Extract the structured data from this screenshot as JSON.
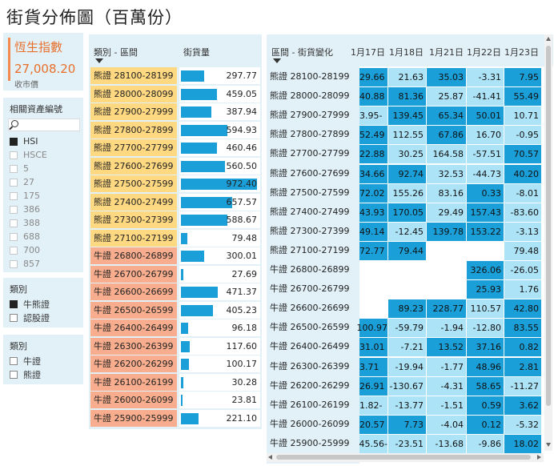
{
  "title": "街貨分佈圖（百萬份）",
  "kpi": {
    "title": "恆生指數",
    "value": "27,008.20",
    "subtitle": "收市價"
  },
  "underlying_filter": {
    "title": "相關資產編號",
    "items": [
      {
        "label": "HSI",
        "checked": true
      },
      {
        "label": "HSCE",
        "checked": false
      },
      {
        "label": "5",
        "checked": false
      },
      {
        "label": "27",
        "checked": false
      },
      {
        "label": "175",
        "checked": false
      },
      {
        "label": "386",
        "checked": false
      },
      {
        "label": "388",
        "checked": false
      },
      {
        "label": "688",
        "checked": false
      },
      {
        "label": "700",
        "checked": false
      },
      {
        "label": "857",
        "checked": false
      }
    ]
  },
  "type_filter_1": {
    "title": "類別",
    "items": [
      {
        "label": "牛熊證",
        "checked": true
      },
      {
        "label": "認股證",
        "checked": false
      }
    ]
  },
  "type_filter_2": {
    "title": "類別",
    "items": [
      {
        "label": "牛證",
        "checked": false
      },
      {
        "label": "熊證",
        "checked": false
      }
    ]
  },
  "table1": {
    "header_category": "類別 - 區間",
    "header_value": "街貨量",
    "max_value": 972.4,
    "rows": [
      {
        "label": "熊證 28100-28199",
        "type": "bear",
        "value": 297.77,
        "display": "297.77"
      },
      {
        "label": "熊證 28000-28099",
        "type": "bear",
        "value": 459.05,
        "display": "459.05"
      },
      {
        "label": "熊證 27900-27999",
        "type": "bear",
        "value": 387.94,
        "display": "387.94"
      },
      {
        "label": "熊證 27800-27899",
        "type": "bear",
        "value": 594.93,
        "display": "594.93"
      },
      {
        "label": "熊證 27700-27799",
        "type": "bear",
        "value": 460.46,
        "display": "460.46"
      },
      {
        "label": "熊證 27600-27699",
        "type": "bear",
        "value": 560.5,
        "display": "560.50"
      },
      {
        "label": "熊證 27500-27599",
        "type": "bear",
        "value": 972.4,
        "display": "972.40"
      },
      {
        "label": "熊證 27400-27499",
        "type": "bear",
        "value": 657.57,
        "display": "657.57"
      },
      {
        "label": "熊證 27300-27399",
        "type": "bear",
        "value": 588.67,
        "display": "588.67"
      },
      {
        "label": "熊證 27100-27199",
        "type": "bear",
        "value": 79.48,
        "display": "79.48"
      },
      {
        "label": "牛證 26800-26899",
        "type": "bull",
        "value": 300.01,
        "display": "300.01"
      },
      {
        "label": "牛證 26700-26799",
        "type": "bull",
        "value": 27.69,
        "display": "27.69"
      },
      {
        "label": "牛證 26600-26699",
        "type": "bull",
        "value": 471.37,
        "display": "471.37"
      },
      {
        "label": "牛證 26500-26599",
        "type": "bull",
        "value": 405.23,
        "display": "405.23"
      },
      {
        "label": "牛證 26400-26499",
        "type": "bull",
        "value": 96.18,
        "display": "96.18"
      },
      {
        "label": "牛證 26300-26399",
        "type": "bull",
        "value": 117.6,
        "display": "117.60"
      },
      {
        "label": "牛證 26200-26299",
        "type": "bull",
        "value": 100.17,
        "display": "100.17"
      },
      {
        "label": "牛證 26100-26199",
        "type": "bull",
        "value": 30.28,
        "display": "30.28"
      },
      {
        "label": "牛證 26000-26099",
        "type": "bull",
        "value": 23.81,
        "display": "23.81"
      },
      {
        "label": "牛證 25900-25999",
        "type": "bull",
        "value": 221.1,
        "display": "221.10"
      }
    ]
  },
  "table2": {
    "header_label": "區間 - 街貨變化",
    "date_headers": [
      "1月17日",
      "1月18日",
      "1月21日",
      "1月22日",
      "1月23日"
    ],
    "rows": [
      {
        "label": "熊證 28100-28199",
        "cells": [
          "29.66",
          "21.63",
          "35.03",
          "-3.31",
          "7.95"
        ],
        "shade": [
          "hi",
          "lo",
          "hi",
          "lo",
          "hi"
        ]
      },
      {
        "label": "熊證 28000-28099",
        "cells": [
          "40.88",
          "81.36",
          "25.87",
          "-41.41",
          "55.49"
        ],
        "shade": [
          "hi",
          "hi",
          "lo",
          "lo",
          "hi"
        ]
      },
      {
        "label": "熊證 27900-27999",
        "cells": [
          "-3.95",
          "139.45",
          "65.34",
          "50.01",
          "10.71"
        ],
        "shade": [
          "lo",
          "hi",
          "hi",
          "hi",
          "lo"
        ]
      },
      {
        "label": "熊證 27800-27899",
        "cells": [
          "52.49",
          "112.55",
          "67.86",
          "16.70",
          "-0.95"
        ],
        "shade": [
          "hi",
          "lo",
          "hi",
          "lo",
          "lo"
        ]
      },
      {
        "label": "熊證 27700-27799",
        "cells": [
          "22.88",
          "30.25",
          "164.58",
          "-57.51",
          "70.57"
        ],
        "shade": [
          "hi",
          "lo",
          "lo",
          "lo",
          "hi"
        ]
      },
      {
        "label": "熊證 27600-27699",
        "cells": [
          "34.66",
          "92.74",
          "32.53",
          "-44.73",
          "40.20"
        ],
        "shade": [
          "hi",
          "hi",
          "lo",
          "lo",
          "hi"
        ]
      },
      {
        "label": "熊證 27500-27599",
        "cells": [
          "72.02",
          "155.26",
          "83.16",
          "0.33",
          "-8.01"
        ],
        "shade": [
          "hi",
          "lo",
          "lo",
          "hi",
          "lo"
        ]
      },
      {
        "label": "熊證 27400-27499",
        "cells": [
          "43.93",
          "170.05",
          "29.49",
          "157.43",
          "-83.60"
        ],
        "shade": [
          "hi",
          "hi",
          "lo",
          "hi",
          "lo"
        ]
      },
      {
        "label": "熊證 27300-27399",
        "cells": [
          "49.14",
          "-12.45",
          "139.78",
          "153.22",
          "-3.13"
        ],
        "shade": [
          "hi",
          "lo",
          "hi",
          "hi",
          "lo"
        ]
      },
      {
        "label": "熊證 27100-27199",
        "cells": [
          "72.77",
          "79.44",
          "",
          "",
          "79.48"
        ],
        "shade": [
          "hi",
          "hi",
          "no",
          "no",
          "lo"
        ]
      },
      {
        "label": "牛證 26800-26899",
        "cells": [
          "",
          "",
          "",
          "326.06",
          "-26.05"
        ],
        "shade": [
          "no",
          "no",
          "no",
          "hi",
          "lo"
        ]
      },
      {
        "label": "牛證 26700-26799",
        "cells": [
          "",
          "",
          "",
          "25.93",
          "1.76"
        ],
        "shade": [
          "no",
          "no",
          "no",
          "hi",
          "lo"
        ]
      },
      {
        "label": "牛證 26600-26699",
        "cells": [
          "",
          "89.23",
          "228.77",
          "110.57",
          "42.80"
        ],
        "shade": [
          "no",
          "hi",
          "hi",
          "lo",
          "hi"
        ]
      },
      {
        "label": "牛證 26500-26599",
        "cells": [
          "100.97",
          "-59.79",
          "-1.94",
          "-12.80",
          "83.55"
        ],
        "shade": [
          "hi",
          "lo",
          "lo",
          "lo",
          "hi"
        ]
      },
      {
        "label": "牛證 26400-26499",
        "cells": [
          "31.01",
          "-7.21",
          "13.52",
          "37.16",
          "0.82"
        ],
        "shade": [
          "hi",
          "lo",
          "hi",
          "hi",
          "hi"
        ]
      },
      {
        "label": "牛證 26300-26399",
        "cells": [
          "3.71",
          "-19.94",
          "-1.77",
          "48.96",
          "2.81"
        ],
        "shade": [
          "hi",
          "lo",
          "lo",
          "hi",
          "hi"
        ]
      },
      {
        "label": "牛證 26200-26299",
        "cells": [
          "26.91",
          "-130.67",
          "-4.31",
          "58.65",
          "-11.27"
        ],
        "shade": [
          "hi",
          "lo",
          "lo",
          "hi",
          "lo"
        ]
      },
      {
        "label": "牛證 26100-26199",
        "cells": [
          "-1.82",
          "-13.77",
          "-1.51",
          "0.59",
          "3.62"
        ],
        "shade": [
          "lo",
          "lo",
          "lo",
          "hi",
          "hi"
        ]
      },
      {
        "label": "牛證 26000-26099",
        "cells": [
          "20.57",
          "7.73",
          "-4.04",
          "0.12",
          "-5.32"
        ],
        "shade": [
          "hi",
          "hi",
          "lo",
          "hi",
          "lo"
        ]
      },
      {
        "label": "牛證 25900-25999",
        "cells": [
          "-45.56",
          "-23.51",
          "-13.68",
          "-9.86",
          "18.02"
        ],
        "shade": [
          "lo",
          "lo",
          "lo",
          "lo",
          "hi"
        ]
      }
    ]
  },
  "colors": {
    "accent": "#1a9fd9",
    "light_accent": "#ade3f7",
    "panel": "#e2f1f8",
    "bear": "#ffd982",
    "bull": "#f8ae8e",
    "kpi": "#e86f2a"
  }
}
